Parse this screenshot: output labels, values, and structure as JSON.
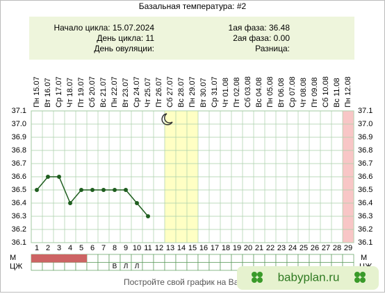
{
  "chart_data": {
    "type": "line",
    "title": "Базальная температура: #2",
    "info": {
      "left": [
        "Начало цикла: 15.07.2024",
        "День цикла: 11",
        "День овуляции:"
      ],
      "right": [
        "1ая фаза: 36.48",
        "2ая фаза: 0.00",
        "Разница:"
      ]
    },
    "top_labels": [
      "Пн 15.07",
      "Вт 16.07",
      "Ср 17.07",
      "Чт 18.07",
      "Пт 19.07",
      "Сб 20.07",
      "Вс 21.07",
      "Пн 22.07",
      "Вт 23.07",
      "Ср 24.07",
      "Чт 25.07",
      "Пт 26.07",
      "Сб 27.07",
      "Вс 28.07",
      "Пн 29.07",
      "Вт 30.07",
      "Ср 31.07",
      "Чт 01.08",
      "Пт 02.08",
      "Сб 03.08",
      "Вс 04.08",
      "Пн 05.08",
      "Вт 06.08",
      "Ср 07.08",
      "Чт 08.08",
      "Пт 09.08",
      "Сб 10.08",
      "Вс 11.08",
      "Пн 12.08"
    ],
    "x": [
      1,
      2,
      3,
      4,
      5,
      6,
      7,
      8,
      9,
      10,
      11,
      12,
      13,
      14,
      15,
      16,
      17,
      18,
      19,
      20,
      21,
      22,
      23,
      24,
      25,
      26,
      27,
      28,
      29
    ],
    "values": [
      36.5,
      36.6,
      36.6,
      36.4,
      36.5,
      36.5,
      36.5,
      36.5,
      36.5,
      36.4,
      36.3,
      null,
      null,
      null,
      null,
      null,
      null,
      null,
      null,
      null,
      null,
      null,
      null,
      null,
      null,
      null,
      null,
      null,
      null
    ],
    "color": "#1f5e1f",
    "ylim": [
      36.1,
      37.1
    ],
    "yticks": [
      36.1,
      36.2,
      36.3,
      36.4,
      36.5,
      36.6,
      36.7,
      36.8,
      36.9,
      {
        "value": 37,
        "label": "37.0"
      },
      37.1
    ],
    "highlights": [
      {
        "from": 13,
        "to": 15,
        "color": "#ffffc4"
      },
      {
        "from": 29,
        "to": 29,
        "color": "#f8c6c6"
      }
    ],
    "row_labels": [
      "М",
      "ЦЖ"
    ],
    "menses_days": [
      1,
      2,
      3,
      4,
      5
    ],
    "menses_color": "#cd6464",
    "cervical": [
      null,
      null,
      null,
      null,
      null,
      null,
      null,
      "В",
      "Л",
      "Л",
      null,
      null,
      null,
      null,
      null,
      null,
      null,
      null,
      null,
      null,
      null,
      null,
      null,
      null,
      null,
      null,
      null,
      null,
      null
    ],
    "footer": "Постройте свой график на Ba",
    "badge": "babyplan.ru"
  }
}
